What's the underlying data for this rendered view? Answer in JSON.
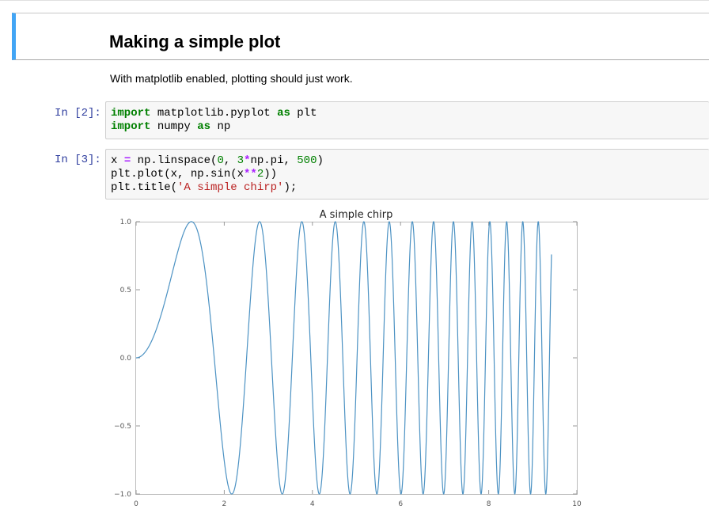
{
  "markdown": {
    "title": "Making a simple plot",
    "text": "With matplotlib enabled, plotting should just work."
  },
  "cells": [
    {
      "prompt": "In [2]:",
      "lines": [
        [
          {
            "t": "import",
            "c": "kw"
          },
          {
            "t": " matplotlib.pyplot ",
            "c": ""
          },
          {
            "t": "as",
            "c": "kw"
          },
          {
            "t": " plt",
            "c": ""
          }
        ],
        [
          {
            "t": "import",
            "c": "kw"
          },
          {
            "t": " numpy ",
            "c": ""
          },
          {
            "t": "as",
            "c": "kw"
          },
          {
            "t": " np",
            "c": ""
          }
        ]
      ]
    },
    {
      "prompt": "In [3]:",
      "lines": [
        [
          {
            "t": "x ",
            "c": ""
          },
          {
            "t": "=",
            "c": "op"
          },
          {
            "t": " np.linspace(",
            "c": ""
          },
          {
            "t": "0",
            "c": "num"
          },
          {
            "t": ", ",
            "c": ""
          },
          {
            "t": "3",
            "c": "num"
          },
          {
            "t": "*",
            "c": "op"
          },
          {
            "t": "np.pi, ",
            "c": ""
          },
          {
            "t": "500",
            "c": "num"
          },
          {
            "t": ")",
            "c": ""
          }
        ],
        [
          {
            "t": "plt.plot(x, np.sin(x",
            "c": ""
          },
          {
            "t": "**",
            "c": "op"
          },
          {
            "t": "2",
            "c": "num"
          },
          {
            "t": "))",
            "c": ""
          }
        ],
        [
          {
            "t": "plt.title(",
            "c": ""
          },
          {
            "t": "'A simple chirp'",
            "c": "str"
          },
          {
            "t": ");",
            "c": ""
          }
        ]
      ]
    }
  ],
  "chart_data": {
    "type": "line",
    "title": "A simple chirp",
    "xlabel": "",
    "ylabel": "",
    "xlim": [
      0,
      10
    ],
    "ylim": [
      -1.0,
      1.0
    ],
    "xticks": [
      0,
      2,
      4,
      6,
      8,
      10
    ],
    "yticks": [
      1.0,
      0.5,
      0.0,
      -0.5,
      -1.0
    ],
    "xtick_labels": [
      "0",
      "2",
      "4",
      "6",
      "8",
      "10"
    ],
    "ytick_labels": [
      "1.0",
      "0.5",
      "0.0",
      "−0.5",
      "−1.0"
    ],
    "function": "y = sin(x^2)",
    "x_range": [
      0,
      9.42477796
    ],
    "n_points": 500,
    "grid": false,
    "line_color": "#4c92c3"
  }
}
